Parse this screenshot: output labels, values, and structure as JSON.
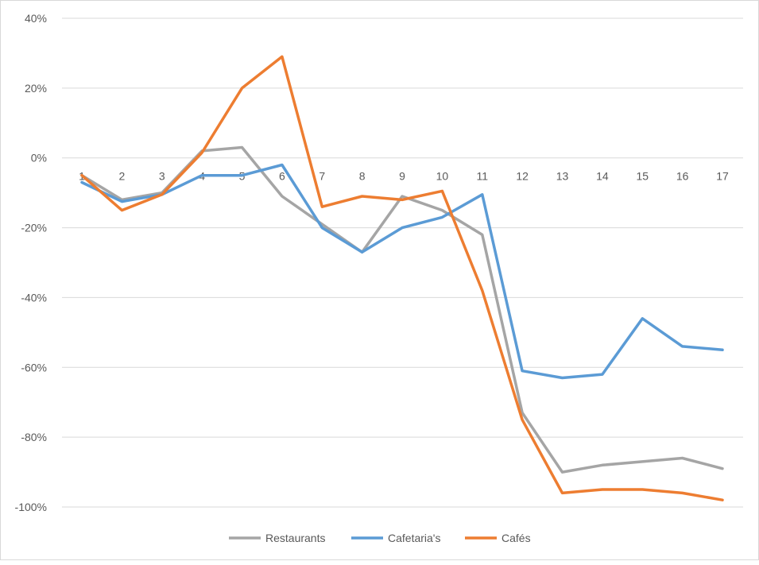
{
  "chart_data": {
    "type": "line",
    "title": "",
    "xlabel": "",
    "ylabel": "",
    "x": [
      1,
      2,
      3,
      4,
      5,
      6,
      7,
      8,
      9,
      10,
      11,
      12,
      13,
      14,
      15,
      16,
      17
    ],
    "y_ticks": [
      "40%",
      "20%",
      "0%",
      "-20%",
      "-40%",
      "-60%",
      "-80%",
      "-100%"
    ],
    "y_tick_values": [
      40,
      20,
      0,
      -20,
      -40,
      -60,
      -80,
      -100
    ],
    "ylim": [
      -100,
      40
    ],
    "grid": true,
    "legend_position": "bottom",
    "series": [
      {
        "name": "Restaurants",
        "color": "#a5a5a5",
        "values": [
          -5,
          -12,
          -10,
          2,
          3,
          -11,
          -19,
          -27,
          -11,
          -15,
          -22,
          -73,
          -90,
          -88,
          -87,
          -86,
          -89
        ]
      },
      {
        "name": "Cafetaria's",
        "color": "#5b9bd5",
        "values": [
          -7,
          -12.5,
          -10.5,
          -5,
          -5,
          -2,
          -20,
          -27,
          -20,
          -17,
          -10.5,
          -61,
          -63,
          -62,
          -46,
          -54,
          -55
        ]
      },
      {
        "name": "Cafés",
        "color": "#ed7d31",
        "values": [
          -5,
          -15,
          -10.5,
          1.5,
          20,
          29,
          -14,
          -11,
          -12,
          -9.5,
          -38,
          -75,
          -96,
          -95,
          -95,
          -96,
          -98
        ]
      }
    ]
  }
}
